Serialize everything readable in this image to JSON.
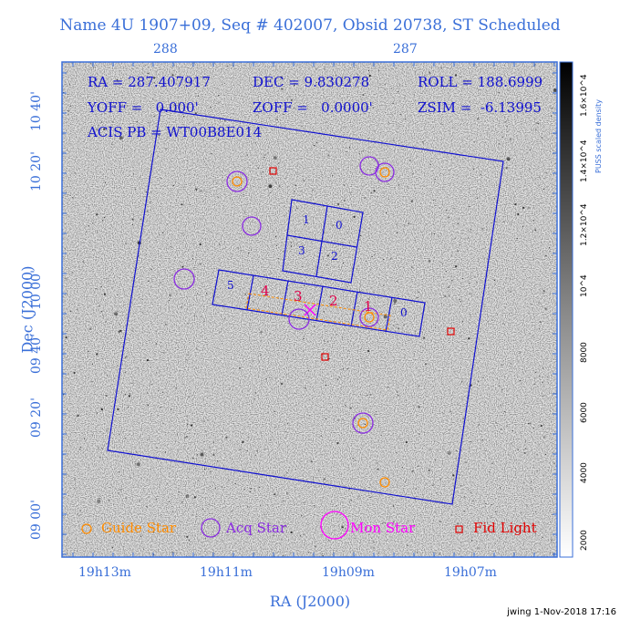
{
  "title": "Name 4U 1907+09, Seq # 402007, Obsid 20738, ST Scheduled",
  "top_ticks": [
    "288",
    "287"
  ],
  "bottom_ticks": [
    "19h13m",
    "19h11m",
    "19h09m",
    "19h07m"
  ],
  "x_axis_label": "RA (J2000)",
  "y_axis_label": "Dec (J2000)",
  "y_ticks": [
    "10 40'",
    "10 20'",
    "10 00'",
    "09 40'",
    "09 20'",
    "09 00'"
  ],
  "info": {
    "ra": "RA = 287.407917",
    "dec": "DEC = 9.830278",
    "roll": "ROLL = 188.6999",
    "yoff": "YOFF =   0.000'",
    "zoff": "ZOFF =   0.0000'",
    "zsim": "ZSIM =  -6.13995",
    "acis": "ACIS PB = WT00B8E014"
  },
  "chips_i": [
    "1",
    "0",
    "3",
    "2"
  ],
  "chips_s_blue": [
    "5",
    "0"
  ],
  "chips_s_red": [
    "4",
    "3",
    "2",
    "1"
  ],
  "legend": {
    "guide": "Guide Star",
    "acq": "Acq Star",
    "mon": "Mon Star",
    "fid": "Fid Light"
  },
  "colorbar": {
    "label": "PUSS scaled density",
    "ticks": [
      "2000",
      "4000",
      "6000",
      "8000",
      "10^4",
      "1.2×10^4",
      "1.4×10^4",
      "1.6×10^4"
    ]
  },
  "footer": "jwing  1-Nov-2018 17:16",
  "colors": {
    "axis": "#3a6fd8",
    "fov": "#1010d0",
    "guide": "#ff8c00",
    "acq": "#8a2be2",
    "mon": "#ff00ff",
    "fid": "#e00000",
    "chip_red": "#e0004a"
  }
}
